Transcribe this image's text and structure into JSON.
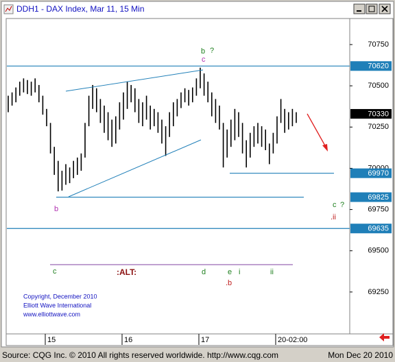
{
  "window": {
    "title": "DDH1 - DAX Index, Mar 11, 15 Min"
  },
  "chart_data": {
    "type": "hilo",
    "color": "#000000",
    "categories": [
      null,
      null,
      null,
      null,
      null,
      null,
      null,
      null,
      null,
      null,
      "15",
      null,
      null,
      null,
      null,
      null,
      null,
      null,
      null,
      null,
      null,
      null,
      null,
      null,
      null,
      null,
      null,
      null,
      null,
      null,
      "16",
      null,
      null,
      null,
      null,
      null,
      null,
      null,
      null,
      null,
      null,
      null,
      null,
      null,
      null,
      null,
      null,
      null,
      null,
      null,
      "17",
      null,
      null,
      null,
      null,
      null,
      null,
      null,
      null,
      null,
      null,
      null,
      null,
      null,
      null,
      null,
      null,
      null,
      null,
      null,
      "20-02:00",
      null,
      null,
      null,
      null,
      null
    ],
    "high": [
      70440,
      70460,
      70490,
      70525,
      70545,
      70535,
      70525,
      70545,
      70505,
      70440,
      70360,
      70275,
      70130,
      70045,
      69985,
      70025,
      70005,
      70045,
      70065,
      70090,
      70275,
      70440,
      70505,
      70485,
      70420,
      70380,
      70340,
      70295,
      70315,
      70400,
      70460,
      70525,
      70505,
      70485,
      70420,
      70400,
      70440,
      70380,
      70360,
      70340,
      70295,
      70255,
      70340,
      70400,
      70420,
      70460,
      70485,
      70475,
      70490,
      70545,
      70610,
      70575,
      70525,
      70460,
      70420,
      70380,
      70275,
      70235,
      70295,
      70360,
      70340,
      70275,
      70170,
      70215,
      70255,
      70275,
      70255,
      70235,
      70150,
      70215,
      70315,
      70420,
      70360,
      70340,
      70360,
      70340
    ],
    "low": [
      70340,
      70380,
      70400,
      70440,
      70460,
      70450,
      70440,
      70460,
      70400,
      70325,
      70255,
      70090,
      69960,
      69860,
      69865,
      69900,
      69910,
      69940,
      69960,
      69985,
      70065,
      70255,
      70360,
      70340,
      70275,
      70215,
      70170,
      70130,
      70150,
      70235,
      70295,
      70360,
      70400,
      70340,
      70275,
      70255,
      70295,
      70235,
      70255,
      70215,
      70150,
      70075,
      70190,
      70255,
      70315,
      70365,
      70400,
      70380,
      70400,
      70440,
      70485,
      70440,
      70400,
      70315,
      70275,
      70235,
      70005,
      70065,
      70130,
      70170,
      70190,
      70090,
      70005,
      70065,
      70130,
      70150,
      70130,
      70110,
      70025,
      70090,
      70150,
      70275,
      70215,
      70235,
      70255,
      70275
    ],
    "ylim": [
      68996,
      70908
    ],
    "yticks": [
      69250,
      69500,
      69750,
      70000,
      70250,
      70500,
      70750
    ],
    "price_levels": [
      70620,
      69970,
      69825,
      69635
    ],
    "level_color": "#1f7fb8",
    "last_price": 70330
  },
  "annotations": {
    "b_top": "b",
    "q_top": "?",
    "c_top": "c",
    "b_low": "b",
    "c_right": "c",
    "q_right": "?",
    "ii_right": ".ii",
    "alt": ":ALT:",
    "c_bottom": "c",
    "d_bottom": "d",
    "e_bottom": "e",
    "i_bottom": "i",
    "ii_bottom": "ii",
    "b_bottom": ".b"
  },
  "copyright": [
    "Copyright, December 2010",
    "Elliott Wave International",
    "www.elliottwave.com"
  ],
  "status_bar": {
    "source": "Source: CQG Inc. © 2010 All rights reserved worldwide.  http://www.cqg.com",
    "date": "Mon Dec 20 2010"
  }
}
